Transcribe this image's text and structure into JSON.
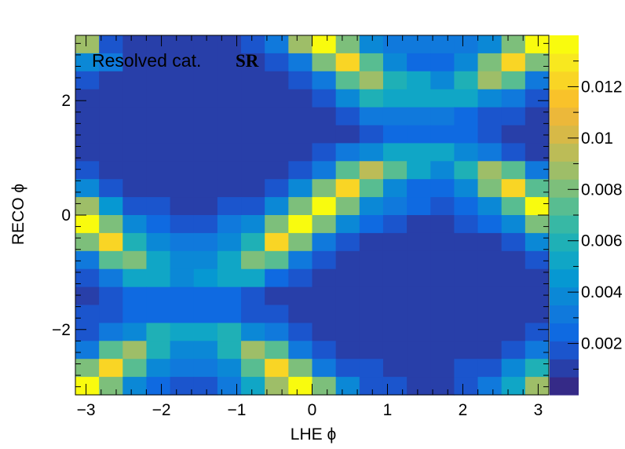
{
  "chart_data": {
    "type": "heatmap",
    "title": "",
    "xlabel": "LHE ϕ",
    "ylabel": "RECO ϕ",
    "xlim": [
      -3.1416,
      3.1416
    ],
    "ylim": [
      -3.1416,
      3.1416
    ],
    "nbins_x": 20,
    "nbins_y": 20,
    "x_ticks": [
      -3,
      -2,
      -1,
      0,
      1,
      2,
      3
    ],
    "x_tick_labels": [
      "−3",
      "−2",
      "−1",
      "0",
      "1",
      "2",
      "3"
    ],
    "y_ticks": [
      -2,
      0,
      2
    ],
    "y_tick_labels": [
      "−2",
      "0",
      "2"
    ],
    "zlim": [
      0,
      0.014
    ],
    "z_ticks": [
      0.002,
      0.004,
      0.006,
      0.008,
      0.01,
      0.012
    ],
    "z_tick_labels": [
      "0.002",
      "0.004",
      "0.006",
      "0.008",
      "0.01",
      "0.012"
    ],
    "palette": [
      "#352a87",
      "#283fa9",
      "#1b55cd",
      "#0f6ae1",
      "#1079dc",
      "#0b88d6",
      "#0698d2",
      "#10a6c6",
      "#1fb0b6",
      "#37b8a5",
      "#58bd91",
      "#7dbf7b",
      "#9ebe68",
      "#bcbc57",
      "#d7b947",
      "#ecb83a",
      "#f9c22a",
      "#f9d525",
      "#f8e81f",
      "#f9fb0e"
    ],
    "values_rows_top_to_bottom": [
      [
        0.009,
        0.0015,
        0.001,
        0.001,
        0.001,
        0.001,
        0.001,
        0.0015,
        0.003,
        0.009,
        0.014,
        0.008,
        0.004,
        0.003,
        0.003,
        0.003,
        0.003,
        0.004,
        0.008,
        0.014
      ],
      [
        0.004,
        0.003,
        0.001,
        0.001,
        0.001,
        0.001,
        0.001,
        0.001,
        0.0015,
        0.003,
        0.008,
        0.012,
        0.007,
        0.0035,
        0.0025,
        0.0025,
        0.004,
        0.008,
        0.012,
        0.008
      ],
      [
        0.002,
        0.001,
        0.001,
        0.001,
        0.001,
        0.001,
        0.001,
        0.001,
        0.001,
        0.0015,
        0.003,
        0.007,
        0.009,
        0.006,
        0.005,
        0.004,
        0.006,
        0.009,
        0.007,
        0.003
      ],
      [
        0.001,
        0.001,
        0.001,
        0.001,
        0.001,
        0.001,
        0.001,
        0.001,
        0.001,
        0.001,
        0.002,
        0.004,
        0.006,
        0.005,
        0.005,
        0.005,
        0.005,
        0.004,
        0.003,
        0.002
      ],
      [
        0.001,
        0.001,
        0.001,
        0.001,
        0.001,
        0.001,
        0.001,
        0.001,
        0.001,
        0.001,
        0.001,
        0.0015,
        0.003,
        0.003,
        0.003,
        0.003,
        0.0025,
        0.002,
        0.0015,
        0.001
      ],
      [
        0.001,
        0.001,
        0.001,
        0.001,
        0.001,
        0.001,
        0.001,
        0.001,
        0.001,
        0.001,
        0.001,
        0.001,
        0.002,
        0.0025,
        0.0025,
        0.0025,
        0.0025,
        0.0015,
        0.001,
        0.001
      ],
      [
        0.001,
        0.001,
        0.001,
        0.001,
        0.001,
        0.001,
        0.001,
        0.001,
        0.001,
        0.001,
        0.0015,
        0.003,
        0.004,
        0.005,
        0.005,
        0.005,
        0.004,
        0.003,
        0.0015,
        0.001
      ],
      [
        0.002,
        0.001,
        0.001,
        0.001,
        0.001,
        0.001,
        0.001,
        0.001,
        0.001,
        0.0015,
        0.003,
        0.007,
        0.0095,
        0.007,
        0.005,
        0.004,
        0.006,
        0.009,
        0.007,
        0.003
      ],
      [
        0.004,
        0.002,
        0.001,
        0.001,
        0.001,
        0.001,
        0.001,
        0.001,
        0.002,
        0.004,
        0.008,
        0.012,
        0.007,
        0.0035,
        0.0025,
        0.0025,
        0.004,
        0.008,
        0.012,
        0.007
      ],
      [
        0.0085,
        0.0045,
        0.002,
        0.002,
        0.001,
        0.001,
        0.002,
        0.002,
        0.004,
        0.008,
        0.014,
        0.008,
        0.004,
        0.003,
        0.0025,
        0.002,
        0.0025,
        0.004,
        0.007,
        0.014
      ],
      [
        0.014,
        0.008,
        0.004,
        0.0025,
        0.002,
        0.002,
        0.003,
        0.004,
        0.008,
        0.014,
        0.008,
        0.004,
        0.0025,
        0.002,
        0.001,
        0.001,
        0.002,
        0.0025,
        0.004,
        0.008
      ],
      [
        0.008,
        0.012,
        0.006,
        0.004,
        0.003,
        0.003,
        0.004,
        0.006,
        0.012,
        0.008,
        0.003,
        0.002,
        0.001,
        0.001,
        0.001,
        0.001,
        0.001,
        0.001,
        0.002,
        0.004
      ],
      [
        0.003,
        0.007,
        0.008,
        0.005,
        0.004,
        0.004,
        0.005,
        0.008,
        0.007,
        0.003,
        0.002,
        0.001,
        0.001,
        0.001,
        0.001,
        0.001,
        0.001,
        0.001,
        0.001,
        0.002
      ],
      [
        0.002,
        0.003,
        0.005,
        0.005,
        0.004,
        0.0045,
        0.005,
        0.005,
        0.0025,
        0.002,
        0.001,
        0.001,
        0.001,
        0.001,
        0.001,
        0.001,
        0.001,
        0.001,
        0.001,
        0.001
      ],
      [
        0.001,
        0.0015,
        0.0025,
        0.0025,
        0.0025,
        0.0025,
        0.0025,
        0.0015,
        0.001,
        0.001,
        0.001,
        0.001,
        0.001,
        0.001,
        0.001,
        0.001,
        0.001,
        0.001,
        0.001,
        0.001
      ],
      [
        0.0015,
        0.002,
        0.0025,
        0.0025,
        0.0025,
        0.0025,
        0.0025,
        0.002,
        0.0015,
        0.001,
        0.001,
        0.001,
        0.001,
        0.001,
        0.001,
        0.001,
        0.001,
        0.001,
        0.001,
        0.001
      ],
      [
        0.002,
        0.003,
        0.004,
        0.006,
        0.005,
        0.005,
        0.006,
        0.004,
        0.003,
        0.002,
        0.001,
        0.001,
        0.001,
        0.001,
        0.001,
        0.001,
        0.001,
        0.001,
        0.001,
        0.0015
      ],
      [
        0.003,
        0.007,
        0.009,
        0.006,
        0.004,
        0.004,
        0.006,
        0.009,
        0.007,
        0.003,
        0.002,
        0.001,
        0.001,
        0.001,
        0.001,
        0.001,
        0.001,
        0.001,
        0.002,
        0.003
      ],
      [
        0.008,
        0.012,
        0.007,
        0.004,
        0.003,
        0.003,
        0.004,
        0.007,
        0.012,
        0.008,
        0.003,
        0.002,
        0.0015,
        0.001,
        0.001,
        0.001,
        0.0015,
        0.002,
        0.004,
        0.006
      ],
      [
        0.014,
        0.008,
        0.004,
        0.0025,
        0.002,
        0.002,
        0.003,
        0.005,
        0.009,
        0.014,
        0.008,
        0.004,
        0.002,
        0.002,
        0.001,
        0.001,
        0.002,
        0.003,
        0.005,
        0.009
      ]
    ],
    "annotation_text": "Resolved cat.",
    "annotation_bold": "SR"
  }
}
